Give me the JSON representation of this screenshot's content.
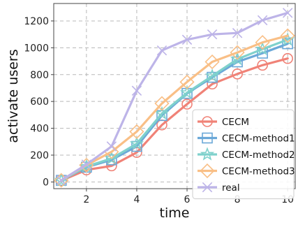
{
  "chart_data": {
    "type": "line",
    "title": "",
    "xlabel": "time",
    "ylabel": "activate users",
    "xlim": [
      0.7,
      10.3
    ],
    "ylim": [
      -50,
      1330
    ],
    "xticks": [
      "2",
      "4",
      "6",
      "8",
      "10"
    ],
    "yticks": [
      "0",
      "200",
      "400",
      "600",
      "800",
      "1000",
      "1200"
    ],
    "grid": true,
    "legend_position": "lower-right",
    "x": [
      1,
      2,
      3,
      4,
      5,
      6,
      7,
      8,
      9,
      10
    ],
    "series": [
      {
        "name": "CECM",
        "color": "#f08277",
        "marker": "circle",
        "values": [
          10,
          90,
          120,
          220,
          425,
          580,
          730,
          805,
          870,
          920
        ]
      },
      {
        "name": "CECM-method1",
        "color": "#6ba8d8",
        "marker": "square",
        "values": [
          12,
          110,
          165,
          265,
          495,
          660,
          780,
          895,
          960,
          1030
        ]
      },
      {
        "name": "CECM-method2",
        "color": "#7fd1cc",
        "marker": "star",
        "values": [
          12,
          115,
          175,
          285,
          510,
          665,
          790,
          915,
          990,
          1060
        ]
      },
      {
        "name": "CECM-method3",
        "color": "#f9bf86",
        "marker": "diamond",
        "values": [
          12,
          125,
          225,
          375,
          585,
          745,
          895,
          965,
          1040,
          1090
        ]
      },
      {
        "name": "real",
        "color": "#bdb4e8",
        "marker": "x",
        "values": [
          12,
          130,
          265,
          680,
          980,
          1060,
          1100,
          1110,
          1205,
          1260
        ]
      }
    ]
  }
}
